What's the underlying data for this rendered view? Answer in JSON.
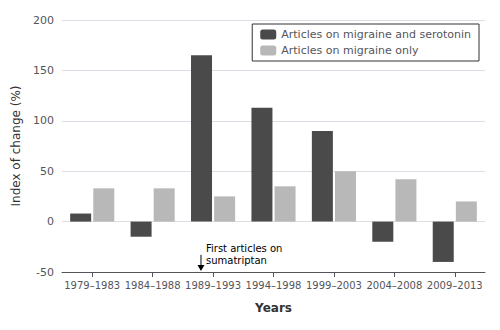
{
  "chart_data": {
    "type": "bar",
    "categories": [
      "1979–1983",
      "1984–1988",
      "1989–1993",
      "1994–1998",
      "1999–2003",
      "2004–2008",
      "2009–2013"
    ],
    "series": [
      {
        "name": "Articles on migraine and serotonin",
        "color": "#4a4a4a",
        "values": [
          8,
          -15,
          165,
          113,
          90,
          -20,
          -40
        ]
      },
      {
        "name": "Articles on migraine only",
        "color": "#b8b8b8",
        "values": [
          33,
          33,
          25,
          35,
          50,
          42,
          20
        ]
      }
    ],
    "xlabel": "Years",
    "ylabel": "Index of change (%)",
    "ylim": [
      -50,
      200
    ],
    "yticks": [
      -50,
      0,
      50,
      100,
      150,
      200
    ],
    "grid": true,
    "legend": "upper right",
    "annotations": [
      {
        "text": "First articles on\nsumatriptan",
        "x": "1989–1993",
        "y": -33
      }
    ]
  }
}
